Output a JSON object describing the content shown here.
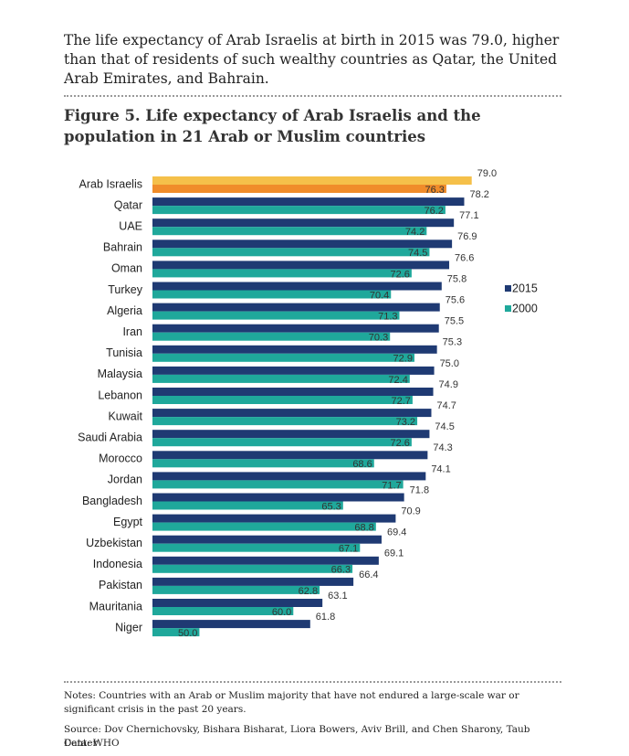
{
  "intro": "The life expectancy of Arab Israelis at birth in 2015 was 79.0, higher than that of residents of such wealthy countries as Qatar, the United Arab Emirates, and Bahrain.",
  "chart_data": {
    "type": "bar",
    "orientation": "horizontal",
    "title": "Figure 5.  Life expectancy of Arab Israelis and the population in 21 Arab or Muslim countries",
    "categories": [
      "Arab Israelis",
      "Qatar",
      "UAE",
      "Bahrain",
      "Oman",
      "Turkey",
      "Algeria",
      "Iran",
      "Tunisia",
      "Malaysia",
      "Lebanon",
      "Kuwait",
      "Saudi Arabia",
      "Morocco",
      "Jordan",
      "Bangladesh",
      "Egypt",
      "Uzbekistan",
      "Indonesia",
      "Pakistan",
      "Mauritania",
      "Niger"
    ],
    "highlight": "Arab Israelis",
    "series": [
      {
        "name": "2015",
        "color": "#1f3a73",
        "highlight_color": "#f5c04a",
        "values": [
          79.0,
          78.2,
          77.1,
          76.9,
          76.6,
          75.8,
          75.6,
          75.5,
          75.3,
          75.0,
          74.9,
          74.7,
          74.5,
          74.3,
          74.1,
          71.8,
          70.9,
          69.4,
          69.1,
          66.4,
          63.1,
          61.8
        ],
        "value_labels": [
          "79.0",
          "78.2",
          "77.1",
          "76.9",
          "76.6",
          "75.8",
          "75.6",
          "75.5",
          "75.3",
          "75.0",
          "74.9",
          "74.7",
          "74.5",
          "74.3",
          "74.1",
          "71.8",
          "70.9",
          "69.4",
          "69.1",
          "66.4",
          "63.1",
          "61.8"
        ]
      },
      {
        "name": "2000",
        "color": "#1fa89b",
        "highlight_color": "#f08c2a",
        "values": [
          76.3,
          76.2,
          74.2,
          74.5,
          72.6,
          70.4,
          71.3,
          70.3,
          72.9,
          72.4,
          72.7,
          73.2,
          72.6,
          68.6,
          71.7,
          65.3,
          68.8,
          67.1,
          66.3,
          62.8,
          60.0,
          50.0
        ],
        "value_labels": [
          "76.3",
          "76.2",
          "74.2",
          "74.5",
          "72.6",
          "70.4",
          "71.3",
          "70.3",
          "72.9",
          "72.4",
          "72.7",
          "73.2",
          "72.6",
          "68.6",
          "71.7",
          "65.3",
          "68.8",
          "67.1",
          "66.3",
          "62.8",
          "60.0",
          "50.0"
        ]
      }
    ],
    "xlim": [
      45,
      80
    ],
    "legend": "right"
  },
  "notes": "Notes: Countries with an Arab or Muslim majority that have not endured a large-scale war or significant crisis in the past 20 years.",
  "source": "Source: Dov Chernichovsky, Bishara Bisharat, Liora Bowers, Aviv Brill, and Chen Sharony, Taub Center",
  "data_source": "Data: WHO"
}
